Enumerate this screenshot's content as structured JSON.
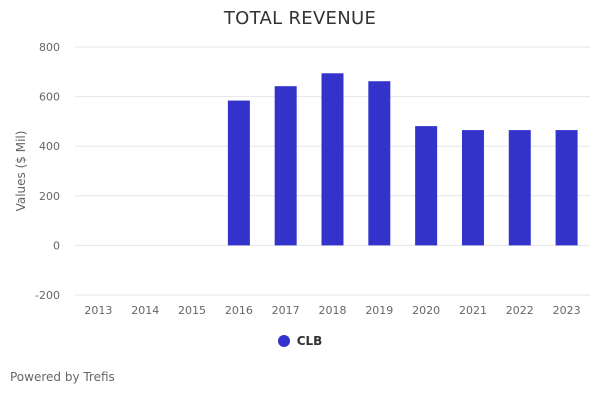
{
  "chart_data": {
    "type": "bar",
    "title": "TOTAL REVENUE",
    "ylabel": "Values ($ Mil)",
    "xlabel": "",
    "categories": [
      "2013",
      "2014",
      "2015",
      "2016",
      "2017",
      "2018",
      "2019",
      "2020",
      "2021",
      "2022",
      "2023"
    ],
    "series": [
      {
        "name": "CLB",
        "color": "#3333cc",
        "values": [
          null,
          null,
          null,
          584,
          642,
          694,
          662,
          481,
          465,
          465,
          465
        ]
      }
    ],
    "ylim": [
      -200,
      800
    ],
    "yticks": [
      "-200",
      "0",
      "200",
      "400",
      "600",
      "800"
    ],
    "ytick_values": [
      -200,
      0,
      200,
      400,
      600,
      800
    ],
    "grid": true,
    "legend_position": "bottom-center"
  },
  "credit": "Powered by Trefis"
}
